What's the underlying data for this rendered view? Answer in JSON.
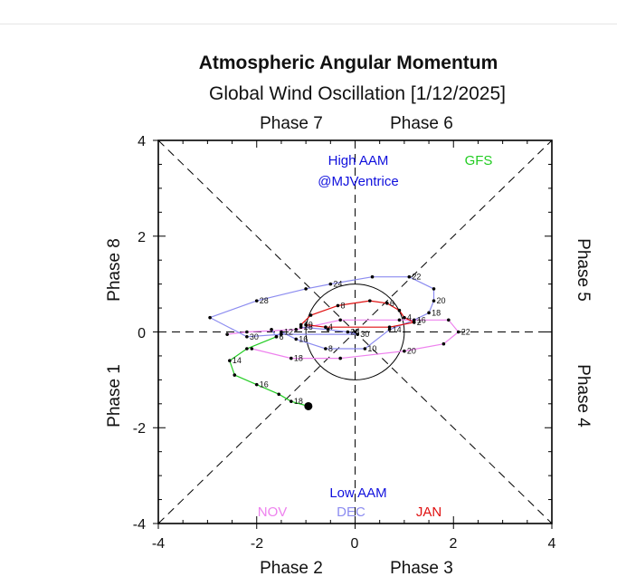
{
  "chart_data": {
    "type": "scatter",
    "title": "Atmospheric Angular Momentum",
    "subtitle": "Global Wind Oscillation [1/12/2025]",
    "xlim": [
      -4,
      4
    ],
    "ylim": [
      -4,
      4
    ],
    "x_ticks": [
      "-4",
      "-2",
      "0",
      "2",
      "4"
    ],
    "y_ticks": [
      "-4",
      "-2",
      "0",
      "2",
      "4"
    ],
    "phases": {
      "p1": "Phase 1",
      "p2": "Phase 2",
      "p3": "Phase 3",
      "p4": "Phase 4",
      "p5": "Phase 5",
      "p6": "Phase 6",
      "p7": "Phase 7",
      "p8": "Phase 8"
    },
    "annotations": {
      "high": "High AAM",
      "handle": "@MJVentrice",
      "low": "Low AAM",
      "gfs": "GFS"
    },
    "colors": {
      "nov": "#ee82ee",
      "dec": "#8c8cf0",
      "jan": "#e01010",
      "gfs": "#22cc22",
      "text_blue": "#1010dd"
    },
    "legend": [
      "NOV",
      "DEC",
      "JAN"
    ],
    "series": [
      {
        "name": "NOV",
        "color": "#ee82ee",
        "points": [
          {
            "x": -2.1,
            "y": -0.35,
            "label": ""
          },
          {
            "x": -1.3,
            "y": -0.55,
            "label": "18"
          },
          {
            "x": -0.3,
            "y": -0.55,
            "label": ""
          },
          {
            "x": 1.0,
            "y": -0.4,
            "label": "20"
          },
          {
            "x": 1.8,
            "y": -0.25,
            "label": ""
          },
          {
            "x": 2.1,
            "y": 0.0,
            "label": "22"
          },
          {
            "x": 1.9,
            "y": 0.25,
            "label": ""
          },
          {
            "x": 0.9,
            "y": 0.25,
            "label": ""
          },
          {
            "x": -0.3,
            "y": 0.25,
            "label": ""
          },
          {
            "x": -1.2,
            "y": 0.05,
            "label": ""
          },
          {
            "x": -2.2,
            "y": 0.0,
            "label": ""
          },
          {
            "x": -2.6,
            "y": -0.05,
            "label": ""
          }
        ]
      },
      {
        "name": "DEC",
        "color": "#8c8cf0",
        "points": [
          {
            "x": -1.1,
            "y": 0.1,
            "label": "26"
          },
          {
            "x": -0.55,
            "y": 0.05,
            "label": ""
          },
          {
            "x": -0.15,
            "y": 0.0,
            "label": "28"
          },
          {
            "x": 0.05,
            "y": -0.05,
            "label": "30"
          },
          {
            "x": -1.5,
            "y": -0.05,
            "label": ""
          },
          {
            "x": -2.2,
            "y": -0.1,
            "label": "30"
          },
          {
            "x": -2.95,
            "y": 0.3,
            "label": ""
          },
          {
            "x": -2.0,
            "y": 0.65,
            "label": "28"
          },
          {
            "x": -1.0,
            "y": 0.9,
            "label": ""
          },
          {
            "x": -0.5,
            "y": 1.0,
            "label": "24"
          },
          {
            "x": 0.35,
            "y": 1.15,
            "label": ""
          },
          {
            "x": 1.1,
            "y": 1.15,
            "label": "22"
          },
          {
            "x": 1.6,
            "y": 0.9,
            "label": ""
          },
          {
            "x": 1.6,
            "y": 0.65,
            "label": "20"
          },
          {
            "x": 1.5,
            "y": 0.4,
            "label": "18"
          },
          {
            "x": 1.2,
            "y": 0.25,
            "label": "16"
          },
          {
            "x": 0.7,
            "y": 0.05,
            "label": "14"
          },
          {
            "x": 0.2,
            "y": -0.35,
            "label": "10"
          },
          {
            "x": -0.6,
            "y": -0.35,
            "label": "8"
          },
          {
            "x": -1.2,
            "y": -0.15,
            "label": "16"
          },
          {
            "x": -1.5,
            "y": 0.0,
            "label": "12"
          },
          {
            "x": -1.6,
            "y": -0.1,
            "label": "6"
          },
          {
            "x": -1.7,
            "y": 0.05,
            "label": ""
          }
        ]
      },
      {
        "name": "JAN",
        "color": "#e01010",
        "points": [
          {
            "x": -1.1,
            "y": 0.15,
            "label": "10"
          },
          {
            "x": -0.9,
            "y": 0.35,
            "label": ""
          },
          {
            "x": -0.35,
            "y": 0.55,
            "label": "8"
          },
          {
            "x": 0.3,
            "y": 0.65,
            "label": ""
          },
          {
            "x": 0.65,
            "y": 0.6,
            "label": "6"
          },
          {
            "x": 0.9,
            "y": 0.45,
            "label": ""
          },
          {
            "x": 1.0,
            "y": 0.3,
            "label": "4"
          },
          {
            "x": 1.2,
            "y": 0.2,
            "label": "2"
          },
          {
            "x": 0.7,
            "y": 0.1,
            "label": ""
          },
          {
            "x": -0.6,
            "y": 0.1,
            "label": "4"
          },
          {
            "x": -1.0,
            "y": 0.15,
            "label": ""
          }
        ]
      },
      {
        "name": "GFS",
        "color": "#22cc22",
        "points": [
          {
            "x": -1.6,
            "y": -0.1,
            "label": ""
          },
          {
            "x": -2.2,
            "y": -0.35,
            "label": ""
          },
          {
            "x": -2.55,
            "y": -0.6,
            "label": "14"
          },
          {
            "x": -2.45,
            "y": -0.9,
            "label": ""
          },
          {
            "x": -2.0,
            "y": -1.1,
            "label": "16"
          },
          {
            "x": -1.55,
            "y": -1.3,
            "label": ""
          },
          {
            "x": -1.3,
            "y": -1.45,
            "label": "18"
          },
          {
            "x": -0.95,
            "y": -1.55,
            "label": ""
          }
        ]
      }
    ],
    "current": {
      "x": -0.95,
      "y": -1.55
    }
  }
}
